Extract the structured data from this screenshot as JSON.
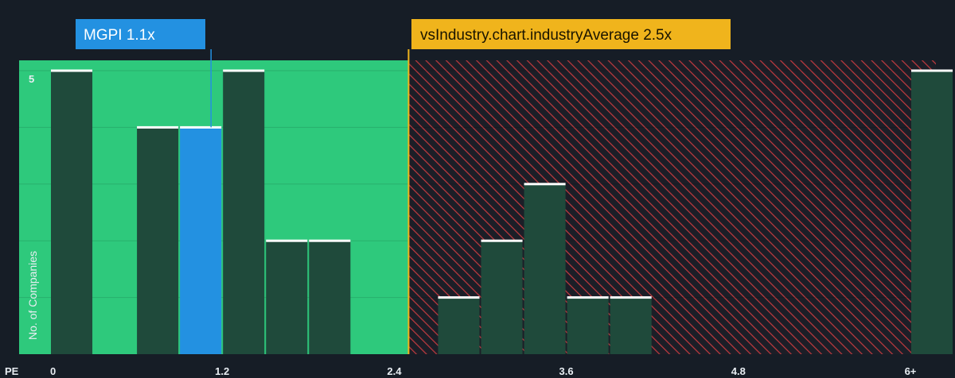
{
  "chart_data": {
    "type": "bar",
    "title": "",
    "xlabel": "PE",
    "ylabel": "No. of Companies",
    "x_ticks": [
      "0",
      "1.2",
      "2.4",
      "3.6",
      "4.8",
      "6+"
    ],
    "x_tick_values": [
      0,
      1.2,
      2.4,
      3.6,
      4.8,
      6
    ],
    "y_ticks": [
      "5"
    ],
    "y_tick_values": [
      5
    ],
    "xlim": [
      0,
      6.3
    ],
    "ylim": [
      0,
      5.2
    ],
    "bars": [
      {
        "x0": 0.0,
        "x1": 0.3,
        "value": 5,
        "highlight": false
      },
      {
        "x0": 0.6,
        "x1": 0.9,
        "value": 4,
        "highlight": false
      },
      {
        "x0": 0.9,
        "x1": 1.2,
        "value": 4,
        "highlight": true
      },
      {
        "x0": 1.2,
        "x1": 1.5,
        "value": 5,
        "highlight": false
      },
      {
        "x0": 1.5,
        "x1": 1.8,
        "value": 2,
        "highlight": false
      },
      {
        "x0": 1.8,
        "x1": 2.1,
        "value": 2,
        "highlight": false
      },
      {
        "x0": 2.7,
        "x1": 3.0,
        "value": 1,
        "highlight": false
      },
      {
        "x0": 3.0,
        "x1": 3.3,
        "value": 2,
        "highlight": false
      },
      {
        "x0": 3.3,
        "x1": 3.6,
        "value": 3,
        "highlight": false
      },
      {
        "x0": 3.6,
        "x1": 3.9,
        "value": 1,
        "highlight": false
      },
      {
        "x0": 3.9,
        "x1": 4.2,
        "value": 1,
        "highlight": false
      },
      {
        "x0": 6.0,
        "x1": 6.3,
        "value": 5,
        "highlight": false
      }
    ],
    "company": {
      "label": "MGPI 1.1x",
      "value": 1.1
    },
    "industry_average": {
      "label": "vsIndustry.chart.industryAverage 2.5x",
      "value": 2.5
    },
    "good_region": {
      "from": 0,
      "to": 2.4
    },
    "grid": true,
    "colors": {
      "background": "#161d26",
      "good_region": "#2ec97c",
      "bar": "#1f4a3b",
      "bar_highlight": "#2391e1",
      "bar_cap": "#ffffff",
      "hatch": "#c23a3f",
      "hatch_bg": "#1c1e27",
      "average_line": "#f0b41c",
      "company_callout": "#2391e1",
      "average_callout": "#f0b41c"
    }
  }
}
